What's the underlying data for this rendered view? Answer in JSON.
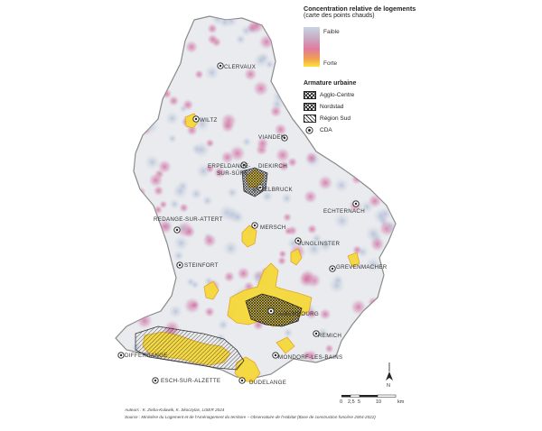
{
  "legend": {
    "title_line1": "Concentration relative de logements",
    "title_line2": "(carte des points chauds)",
    "gradient_low": "Faible",
    "gradient_high": "Forte",
    "armature_title": "Armature urbaine",
    "items": [
      {
        "label": "Agglo-Centre",
        "pattern": "crosshatch"
      },
      {
        "label": "Nordstad",
        "pattern": "dots"
      },
      {
        "label": "Région Sud",
        "pattern": "diagonal"
      },
      {
        "label": "CDA",
        "pattern": "ring-symbol"
      }
    ]
  },
  "cities": [
    {
      "name": "CLERVAUX"
    },
    {
      "name": "WILTZ"
    },
    {
      "name": "VIANDEN"
    },
    {
      "name": "ERPELDANGE-"
    },
    {
      "name": "SUR-SÛRE"
    },
    {
      "name": "DIEKIRCH"
    },
    {
      "name": "ETTELBRUCK"
    },
    {
      "name": "ECHTERNACH"
    },
    {
      "name": "REDANGE-SUR-ATTERT"
    },
    {
      "name": "MERSCH"
    },
    {
      "name": "JUNGLINSTER"
    },
    {
      "name": "GREVENMACHER"
    },
    {
      "name": "STEINFORT"
    },
    {
      "name": "LUXEMBOURG"
    },
    {
      "name": "REMICH"
    },
    {
      "name": "DIFFERDANGE"
    },
    {
      "name": "MONDORF-LES-BAINS"
    },
    {
      "name": "ESCH-SUR-ALZETTE"
    },
    {
      "name": "DUDELANGE"
    }
  ],
  "scale": {
    "ticks": [
      "0",
      "2,5",
      "5",
      "10"
    ],
    "unit": "km"
  },
  "north": "N",
  "footer": {
    "authors": "Auteurs : K. Zieba-Kulawik, K. Skoczylas, LISER 2024",
    "source": "Source : Ministère du Logement et de l'Aménagement du territoire – Observatoire de l'Habitat (Base de construction foncière 2004-2022)"
  },
  "colors": {
    "low": "#c9d4e2",
    "mid": "#e07aa0",
    "high": "#ffe23a",
    "land": "#eaecee",
    "border": "#7a7a7a"
  }
}
